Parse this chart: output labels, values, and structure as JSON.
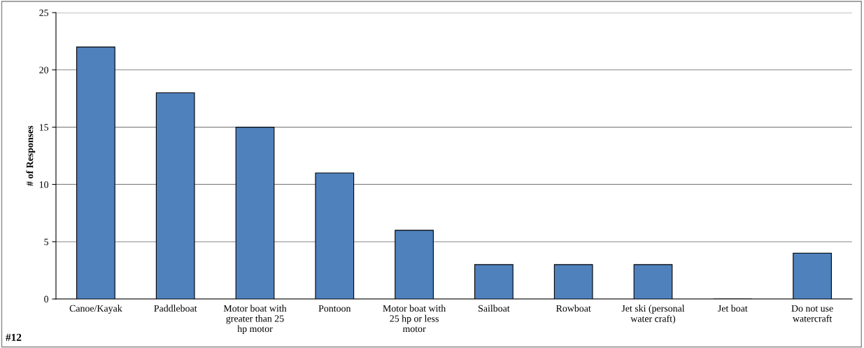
{
  "chart_data": {
    "type": "bar",
    "ylabel": "# of Responses",
    "categories": [
      "Canoe/Kayak",
      "Paddleboat",
      "Motor boat with\ngreater than 25\nhp motor",
      "Pontoon",
      "Motor boat with\n25 hp or less\nmotor",
      "Sailboat",
      "Rowboat",
      "Jet ski (personal\nwater craft)",
      "Jet boat",
      "Do not use\nwatercraft"
    ],
    "values": [
      22,
      18,
      15,
      11,
      6,
      3,
      3,
      3,
      0,
      4
    ],
    "color": "#4f81bd",
    "ylim": [
      0,
      25
    ],
    "yticks": [
      0,
      5,
      10,
      15,
      20,
      25
    ],
    "grid": "y",
    "annotations": [
      "#12"
    ]
  }
}
